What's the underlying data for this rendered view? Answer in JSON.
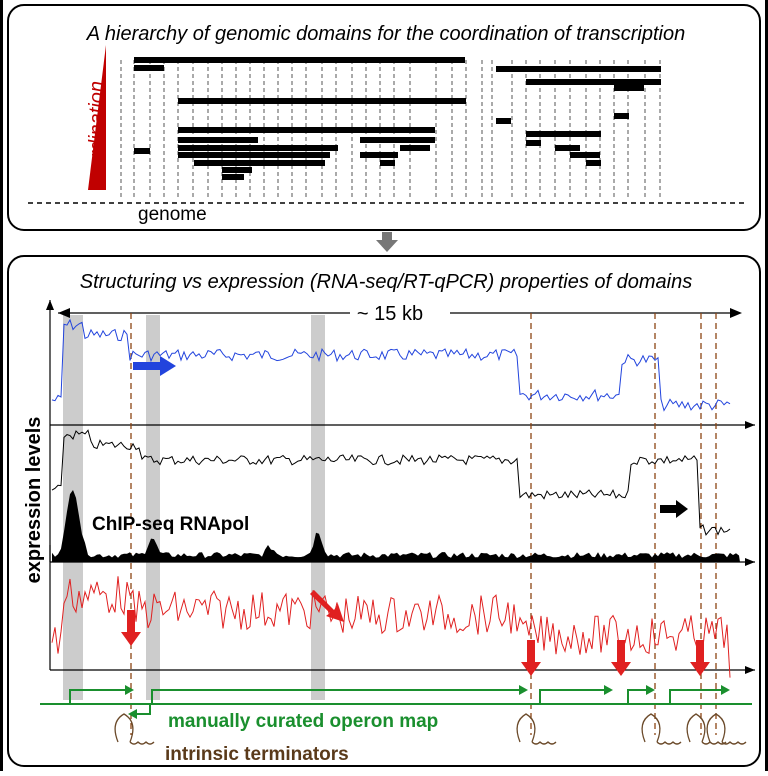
{
  "top_panel": {
    "title": "A hierarchy of genomic domains for the coordination of transcription",
    "axis_label": "coordination",
    "genome_label": "genome"
  },
  "bottom_panel": {
    "title": "Structuring vs expression (RNA-seq/RT-qPCR) properties of domains",
    "scale_label": "~ 15 kb",
    "y_axis_label": "expression levels",
    "chip_label": "ChIP-seq RNApol",
    "operon_label": "manually curated operon map",
    "terminator_label": "intrinsic terminators"
  }
}
